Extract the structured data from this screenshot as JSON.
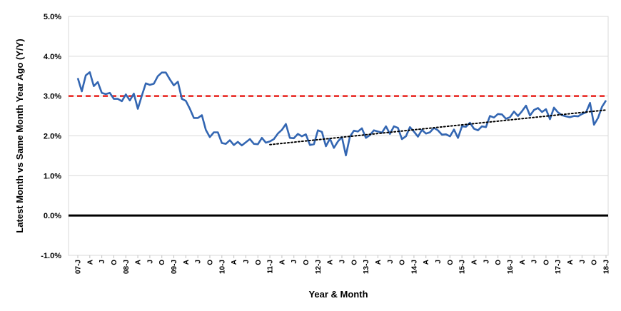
{
  "chart_data": {
    "type": "line",
    "xlabel": "Year & Month",
    "ylabel": "Latest Month vs Same Month Year Ago (Y/Y)",
    "ylim": [
      -1.0,
      5.0
    ],
    "y_ticks": [
      "-1.0%",
      "0.0%",
      "1.0%",
      "2.0%",
      "3.0%",
      "4.0%",
      "5.0%"
    ],
    "x_ticks": [
      "07-J",
      "A",
      "J",
      "O",
      "08-J",
      "A",
      "J",
      "O",
      "09-J",
      "A",
      "J",
      "O",
      "10-J",
      "A",
      "J",
      "O",
      "11-J",
      "A",
      "J",
      "O",
      "12-J",
      "A",
      "J",
      "O",
      "13-J",
      "A",
      "J",
      "O",
      "14-J",
      "A",
      "J",
      "O",
      "15-J",
      "A",
      "J",
      "O",
      "16-J",
      "A",
      "J",
      "O",
      "17-J",
      "A",
      "J",
      "O",
      "18-J"
    ],
    "grid": "horizontal",
    "x_start": "2007-01",
    "x_end": "2018-01",
    "series": [
      {
        "values": [
          3.45,
          3.12,
          3.52,
          3.6,
          3.25,
          3.35,
          3.08,
          3.05,
          3.08,
          2.93,
          2.93,
          2.87,
          3.04,
          2.89,
          3.06,
          2.68,
          3.01,
          3.32,
          3.28,
          3.31,
          3.5,
          3.59,
          3.59,
          3.42,
          3.27,
          3.36,
          2.93,
          2.88,
          2.68,
          2.45,
          2.45,
          2.52,
          2.15,
          1.97,
          2.09,
          2.09,
          1.82,
          1.8,
          1.89,
          1.77,
          1.85,
          1.76,
          1.84,
          1.92,
          1.8,
          1.79,
          1.95,
          1.83,
          1.86,
          1.92,
          2.06,
          2.15,
          2.3,
          1.95,
          1.94,
          2.05,
          1.99,
          2.04,
          1.77,
          1.79,
          2.14,
          2.1,
          1.74,
          1.93,
          1.7,
          1.86,
          1.97,
          1.51,
          1.98,
          2.13,
          2.11,
          2.19,
          1.95,
          2.02,
          2.14,
          2.11,
          2.08,
          2.24,
          2.05,
          2.24,
          2.2,
          1.92,
          1.99,
          2.22,
          2.11,
          1.98,
          2.15,
          2.06,
          2.09,
          2.2,
          2.14,
          2.03,
          2.04,
          1.99,
          2.16,
          1.95,
          2.24,
          2.23,
          2.33,
          2.18,
          2.14,
          2.24,
          2.22,
          2.5,
          2.46,
          2.55,
          2.54,
          2.43,
          2.47,
          2.61,
          2.5,
          2.62,
          2.76,
          2.51,
          2.65,
          2.7,
          2.6,
          2.67,
          2.42,
          2.71,
          2.59,
          2.52,
          2.49,
          2.47,
          2.5,
          2.49,
          2.55,
          2.59,
          2.83,
          2.28,
          2.45,
          2.73,
          2.89
        ],
        "color": "#3366b2"
      }
    ],
    "reference_line": {
      "value": 3.0,
      "color": "#e8221c",
      "style": "dashed"
    },
    "zero_line": {
      "value": 0.0,
      "color": "#000000"
    },
    "trendline": {
      "from_x": "2011-01",
      "from_y": 1.78,
      "to_x": "2018-01",
      "to_y": 2.65,
      "color": "#000000",
      "style": "dotted"
    }
  }
}
